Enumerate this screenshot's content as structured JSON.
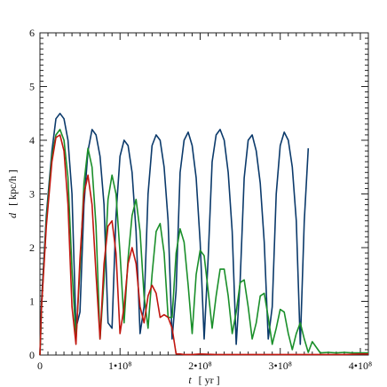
{
  "chart_data": {
    "type": "line",
    "title": "",
    "xlabel": "t [ yr ]",
    "xlabel_var": "t",
    "xlabel_unit": "[ yr ]",
    "ylabel": "d [ kpc/h ]",
    "ylabel_var": "d",
    "ylabel_unit": "[ kpc/h ]",
    "xlim": [
      0,
      410000000
    ],
    "ylim": [
      0,
      6
    ],
    "grid": false,
    "x_ticks": [
      {
        "value": 0,
        "label": "0"
      },
      {
        "value": 100000000,
        "label": "1•10⁸"
      },
      {
        "value": 200000000,
        "label": "2•10⁸"
      },
      {
        "value": 300000000,
        "label": "3•10⁸"
      },
      {
        "value": 400000000,
        "label": "4•10⁸"
      }
    ],
    "y_ticks": [
      {
        "value": 0,
        "label": "0"
      },
      {
        "value": 1,
        "label": "1"
      },
      {
        "value": 2,
        "label": "2"
      },
      {
        "value": 3,
        "label": "3"
      },
      {
        "value": 4,
        "label": "4"
      },
      {
        "value": 5,
        "label": "5"
      },
      {
        "value": 6,
        "label": "6"
      }
    ],
    "series": [
      {
        "color": "#0b3a6b",
        "x": [
          0,
          2000000,
          8000000,
          15000000,
          20000000,
          25000000,
          30000000,
          35000000,
          40000000,
          45000000,
          50000000,
          55000000,
          60000000,
          65000000,
          70000000,
          75000000,
          80000000,
          85000000,
          90000000,
          95000000,
          100000000,
          105000000,
          110000000,
          115000000,
          120000000,
          125000000,
          130000000,
          135000000,
          140000000,
          145000000,
          150000000,
          155000000,
          160000000,
          165000000,
          170000000,
          175000000,
          180000000,
          185000000,
          190000000,
          195000000,
          200000000,
          205000000,
          210000000,
          215000000,
          220000000,
          225000000,
          230000000,
          235000000,
          240000000,
          245000000,
          250000000,
          255000000,
          260000000,
          265000000,
          270000000,
          275000000,
          280000000,
          285000000,
          290000000,
          295000000,
          300000000,
          305000000,
          310000000,
          315000000,
          320000000,
          325000000,
          330000000,
          335000000
        ],
        "y": [
          0,
          1.0,
          2.6,
          3.8,
          4.4,
          4.5,
          4.4,
          4.0,
          3.0,
          0.5,
          0.8,
          2.8,
          3.8,
          4.2,
          4.1,
          3.7,
          2.8,
          0.6,
          0.5,
          2.6,
          3.7,
          4.0,
          3.9,
          3.4,
          2.3,
          0.4,
          0.9,
          3.0,
          3.9,
          4.1,
          4.0,
          3.5,
          2.5,
          0.3,
          1.2,
          3.4,
          4.0,
          4.15,
          3.9,
          3.3,
          2.1,
          0.3,
          1.8,
          3.6,
          4.1,
          4.2,
          4.0,
          3.4,
          2.3,
          0.2,
          1.4,
          3.3,
          4.0,
          4.1,
          3.8,
          3.2,
          2.1,
          0.3,
          0.9,
          3.0,
          3.9,
          4.15,
          4.0,
          3.5,
          2.5,
          0.2,
          2.5,
          3.85
        ]
      },
      {
        "color": "#1a8f2a",
        "x": [
          0,
          2000000,
          8000000,
          15000000,
          20000000,
          25000000,
          30000000,
          35000000,
          40000000,
          45000000,
          50000000,
          55000000,
          60000000,
          65000000,
          70000000,
          75000000,
          80000000,
          85000000,
          90000000,
          95000000,
          100000000,
          105000000,
          110000000,
          115000000,
          120000000,
          125000000,
          130000000,
          135000000,
          140000000,
          145000000,
          150000000,
          155000000,
          160000000,
          165000000,
          170000000,
          175000000,
          180000000,
          185000000,
          190000000,
          195000000,
          200000000,
          205000000,
          210000000,
          215000000,
          220000000,
          225000000,
          230000000,
          235000000,
          240000000,
          245000000,
          250000000,
          255000000,
          260000000,
          265000000,
          270000000,
          275000000,
          280000000,
          285000000,
          290000000,
          295000000,
          300000000,
          305000000,
          310000000,
          315000000,
          320000000,
          325000000,
          330000000,
          335000000,
          340000000,
          350000000,
          360000000,
          370000000,
          380000000,
          390000000,
          400000000,
          410000000
        ],
        "y": [
          0,
          0.9,
          2.5,
          3.7,
          4.1,
          4.2,
          4.0,
          3.3,
          1.6,
          0.3,
          1.6,
          3.2,
          3.85,
          3.5,
          2.4,
          0.3,
          1.4,
          2.9,
          3.35,
          3.0,
          1.9,
          0.6,
          1.8,
          2.6,
          2.9,
          2.3,
          1.1,
          0.5,
          1.5,
          2.3,
          2.45,
          1.9,
          0.7,
          0.7,
          1.9,
          2.35,
          2.1,
          1.3,
          0.4,
          1.5,
          1.95,
          1.85,
          1.2,
          0.5,
          1.1,
          1.6,
          1.6,
          1.1,
          0.4,
          0.8,
          1.35,
          1.4,
          0.9,
          0.3,
          0.6,
          1.1,
          1.15,
          0.7,
          0.2,
          0.5,
          0.85,
          0.8,
          0.4,
          0.1,
          0.4,
          0.6,
          0.3,
          0.05,
          0.25,
          0.04,
          0.05,
          0.04,
          0.05,
          0.04,
          0.04,
          0.04
        ]
      },
      {
        "color": "#c0160f",
        "x": [
          0,
          2000000,
          8000000,
          15000000,
          20000000,
          25000000,
          30000000,
          35000000,
          40000000,
          45000000,
          50000000,
          55000000,
          60000000,
          65000000,
          70000000,
          75000000,
          80000000,
          85000000,
          90000000,
          95000000,
          100000000,
          105000000,
          110000000,
          115000000,
          120000000,
          125000000,
          130000000,
          135000000,
          140000000,
          145000000,
          150000000,
          155000000,
          160000000,
          165000000,
          170000000,
          175000000,
          180000000,
          190000000,
          200000000,
          220000000,
          250000000,
          280000000,
          300000000,
          320000000,
          340000000,
          360000000,
          380000000,
          400000000,
          410000000
        ],
        "y": [
          0,
          0.9,
          2.4,
          3.6,
          4.05,
          4.1,
          3.8,
          2.8,
          0.9,
          0.2,
          1.8,
          3.0,
          3.35,
          2.8,
          1.5,
          0.3,
          1.7,
          2.4,
          2.5,
          1.9,
          0.4,
          0.9,
          1.7,
          2.0,
          1.7,
          0.9,
          0.6,
          1.1,
          1.3,
          1.15,
          0.7,
          0.75,
          0.7,
          0.5,
          0.02,
          0.02,
          0.01,
          0.01,
          0.02,
          0.01,
          0.01,
          0.01,
          0.01,
          0.01,
          0.01,
          0.01,
          0.01,
          0.02,
          0.02
        ]
      }
    ]
  }
}
